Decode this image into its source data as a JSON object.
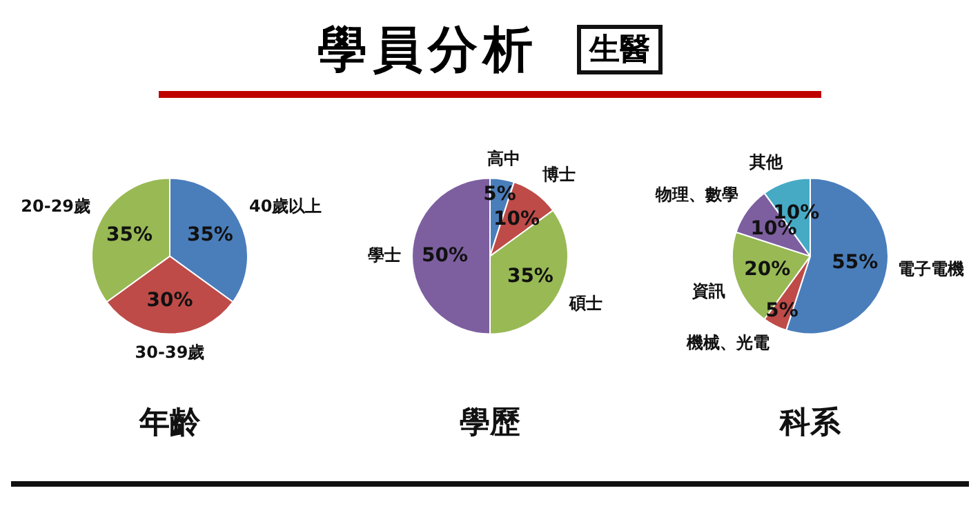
{
  "chart_data": [
    {
      "type": "pie",
      "title": "年齡",
      "annotations": [
        "學員分析",
        "生醫"
      ],
      "categories": [
        "40歲以上",
        "30-39歲",
        "20-29歲"
      ],
      "values": [
        35,
        30,
        35
      ],
      "value_labels": [
        "35%",
        "30%",
        "35%"
      ],
      "colors": [
        "#4a7ebb",
        "#be4b48",
        "#98b954"
      ],
      "legend": false
    },
    {
      "type": "pie",
      "title": "學歷",
      "categories": [
        "高中",
        "博士",
        "碩士",
        "學士"
      ],
      "values": [
        5,
        10,
        35,
        50
      ],
      "value_labels": [
        "5%",
        "10%",
        "35%",
        "50%"
      ],
      "colors": [
        "#4a7ebb",
        "#be4b48",
        "#98b954",
        "#7d5fa0"
      ],
      "legend": false
    },
    {
      "type": "pie",
      "title": "科系",
      "categories": [
        "電子電機",
        "機械、光電",
        "資訊",
        "物理、數學",
        "其他"
      ],
      "values": [
        55,
        5,
        20,
        10,
        10
      ],
      "value_labels": [
        "55%",
        "5%",
        "20%",
        "10%",
        "10%"
      ],
      "colors": [
        "#4a7ebb",
        "#be4b48",
        "#98b954",
        "#7d5fa0",
        "#46aac5"
      ],
      "legend": false
    }
  ]
}
